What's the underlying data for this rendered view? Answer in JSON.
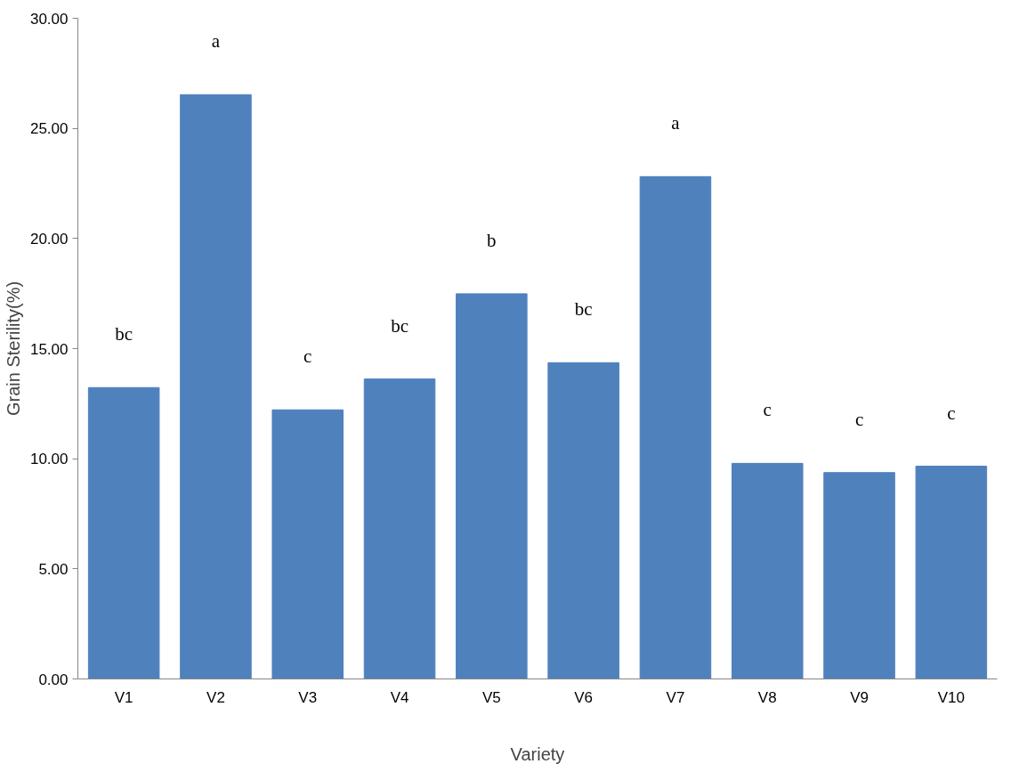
{
  "chart_data": {
    "type": "bar",
    "xlabel": "Variety",
    "ylabel": "Grain Sterility(%)",
    "categories": [
      "V1",
      "V2",
      "V3",
      "V4",
      "V5",
      "V6",
      "V7",
      "V8",
      "V9",
      "V10"
    ],
    "values": [
      13.23,
      26.53,
      12.22,
      13.62,
      17.49,
      14.36,
      22.81,
      9.79,
      9.37,
      9.66
    ],
    "color": "#4f81bd",
    "ylim": [
      0,
      30
    ],
    "yticks": [
      {
        "value": 0,
        "label": "0.00"
      },
      {
        "value": 5,
        "label": "5.00"
      },
      {
        "value": 10,
        "label": "10.00"
      },
      {
        "value": 15,
        "label": "15.00"
      },
      {
        "value": 20,
        "label": "20.00"
      },
      {
        "value": 25,
        "label": "25.00"
      },
      {
        "value": 30,
        "label": "30.00"
      }
    ],
    "grid": false,
    "annotations": [
      {
        "text": "bc",
        "x": "V1",
        "y": 13.23
      },
      {
        "text": "a",
        "x": "V2",
        "y": 26.53
      },
      {
        "text": "c",
        "x": "V3",
        "y": 12.22
      },
      {
        "text": "bc",
        "x": "V4",
        "y": 13.62
      },
      {
        "text": "b",
        "x": "V5",
        "y": 17.49
      },
      {
        "text": "bc",
        "x": "V6",
        "y": 14.36
      },
      {
        "text": "a",
        "x": "V7",
        "y": 22.81
      },
      {
        "text": "c",
        "x": "V8",
        "y": 9.79
      },
      {
        "text": "c",
        "x": "V9",
        "y": 9.37
      },
      {
        "text": "c",
        "x": "V10",
        "y": 9.66
      }
    ]
  }
}
